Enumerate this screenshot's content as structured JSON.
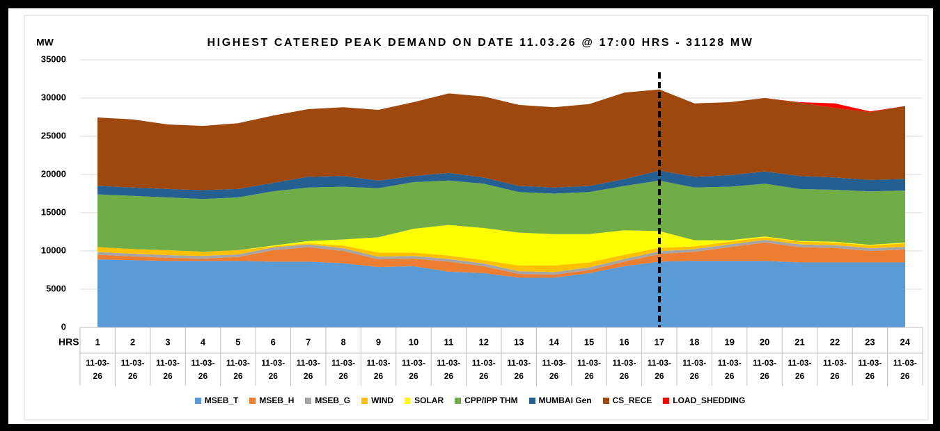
{
  "chart_data": {
    "type": "stacked_area",
    "title": "HIGHEST CATERED PEAK DEMAND ON DATE 11.03.26 @ 17:00 HRS - 31128 MW",
    "y_axis_label": "MW",
    "x_axis_label": "HRS",
    "categories": [
      "1",
      "2",
      "3",
      "4",
      "5",
      "6",
      "7",
      "8",
      "9",
      "10",
      "11",
      "12",
      "13",
      "14",
      "15",
      "16",
      "17",
      "18",
      "19",
      "20",
      "21",
      "22",
      "23",
      "24"
    ],
    "dates": [
      "11-03-26",
      "11-03-26",
      "11-03-26",
      "11-03-26",
      "11-03-26",
      "11-03-26",
      "11-03-26",
      "11-03-26",
      "11-03-26",
      "11-03-26",
      "11-03-26",
      "11-03-26",
      "11-03-26",
      "11-03-26",
      "11-03-26",
      "11-03-26",
      "11-03-26",
      "11-03-26",
      "11-03-26",
      "11-03-26",
      "11-03-26",
      "11-03-26",
      "11-03-26",
      "11-03-26"
    ],
    "ylim": [
      0,
      35000
    ],
    "yticks": [
      0,
      5000,
      10000,
      15000,
      20000,
      25000,
      30000,
      35000
    ],
    "grid": true,
    "legend": "bottom",
    "series": [
      {
        "name": "MSEB_T",
        "color": "#5b9bd5",
        "values": [
          8900,
          8800,
          8700,
          8700,
          8700,
          8600,
          8600,
          8400,
          7900,
          8000,
          7300,
          7100,
          6500,
          6500,
          7100,
          8000,
          8600,
          8700,
          8700,
          8700,
          8500,
          8500,
          8500,
          8500
        ]
      },
      {
        "name": "MSEB_H",
        "color": "#ed7d31",
        "values": [
          600,
          500,
          400,
          300,
          500,
          1500,
          1900,
          1600,
          1000,
          1000,
          1300,
          900,
          500,
          400,
          400,
          600,
          1000,
          1200,
          1800,
          2400,
          2000,
          1900,
          1500,
          1700
        ]
      },
      {
        "name": "MSEB_G",
        "color": "#a5a5a5",
        "values": [
          350,
          350,
          350,
          350,
          350,
          350,
          350,
          350,
          350,
          350,
          350,
          350,
          350,
          350,
          350,
          350,
          350,
          350,
          350,
          350,
          350,
          350,
          350,
          350
        ]
      },
      {
        "name": "WIND",
        "color": "#ffc000",
        "values": [
          650,
          600,
          650,
          550,
          550,
          150,
          150,
          350,
          550,
          450,
          450,
          450,
          750,
          850,
          650,
          550,
          450,
          350,
          350,
          350,
          350,
          350,
          350,
          450
        ]
      },
      {
        "name": "SOLAR",
        "color": "#ffff00",
        "values": [
          0,
          0,
          0,
          0,
          0,
          100,
          300,
          800,
          2000,
          3100,
          4000,
          4200,
          4300,
          4100,
          3700,
          3200,
          2200,
          800,
          200,
          100,
          100,
          100,
          100,
          100
        ]
      },
      {
        "name": "CPP/IPP THM",
        "color": "#70ad47",
        "values": [
          6900,
          6950,
          6900,
          6900,
          6900,
          7100,
          7000,
          6900,
          6400,
          6100,
          5800,
          5800,
          5300,
          5300,
          5500,
          5800,
          6600,
          6900,
          7000,
          6900,
          6800,
          6800,
          7000,
          6800
        ]
      },
      {
        "name": "MUMBAI Gen",
        "color": "#255e91",
        "values": [
          1100,
          1100,
          1100,
          1150,
          1100,
          1100,
          1400,
          1400,
          1000,
          800,
          1000,
          800,
          800,
          800,
          800,
          900,
          1300,
          1400,
          1500,
          1600,
          1700,
          1600,
          1500,
          1500
        ]
      },
      {
        "name": "CS_RECE",
        "color": "#9e480e",
        "values": [
          8950,
          8900,
          8450,
          8400,
          8600,
          8800,
          8850,
          9000,
          9250,
          9650,
          10400,
          10600,
          10600,
          10500,
          10700,
          11300,
          10628,
          9600,
          9550,
          9600,
          9600,
          9100,
          8850,
          9550
        ]
      },
      {
        "name": "LOAD_SHEDDING",
        "color": "#ff0000",
        "values": [
          0,
          0,
          0,
          0,
          0,
          0,
          0,
          0,
          0,
          0,
          0,
          0,
          0,
          0,
          0,
          0,
          0,
          0,
          0,
          0,
          50,
          600,
          100,
          0
        ]
      }
    ]
  }
}
